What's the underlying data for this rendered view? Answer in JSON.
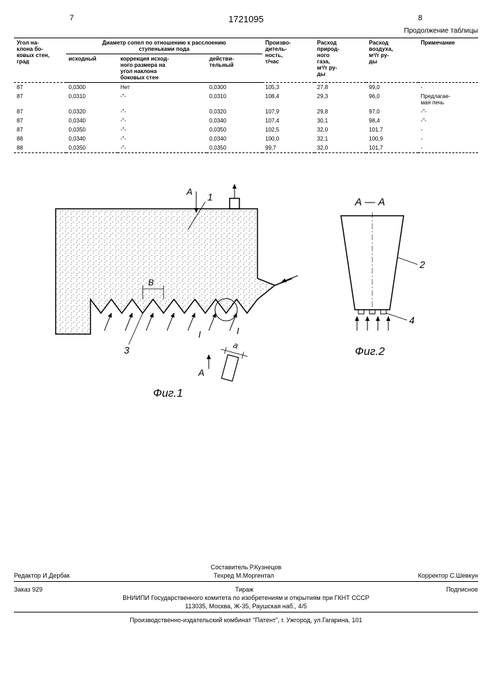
{
  "header": {
    "left_page": "7",
    "right_page": "8",
    "patent": "1721095",
    "continuation": "Продолжение таблицы"
  },
  "table": {
    "headers": {
      "col1": "Угол на-\nклона бо-\nковых стен,\nград",
      "col2_group": "Диаметр сопел по отношению к расслоению\nступеньками пода",
      "col2a": "исходный",
      "col2b": "коррекция исход-\nного размера на\nугол наклона\nбоковых стен",
      "col2c": "действи-\nтельный",
      "col3": "Произво-\nдитель-\nность,\nт/час",
      "col4": "Расход\nприрод-\nного\nгаза,\nм³/т ру-\nды",
      "col5": "Расход\nвоздуха,\nм³/т ру-\nды",
      "col6": "Примечание"
    },
    "rows": [
      {
        "c1": "87",
        "c2": "0,0300",
        "c3": "Нет",
        "c4": "0,0300",
        "c5": "105,3",
        "c6": "27,8",
        "c7": "99,0",
        "c8": "-"
      },
      {
        "c1": "87",
        "c2": "0,0310",
        "c3": "-\"-",
        "c4": "0,0310",
        "c5": "108,4",
        "c6": "29,3",
        "c7": "96,0",
        "c8": "Предлагае-\nмая печь"
      },
      {
        "c1": "87",
        "c2": "0,0320",
        "c3": "-\"-",
        "c4": "0,0320",
        "c5": "107,9",
        "c6": "29,8",
        "c7": "97,0",
        "c8": "-\"-"
      },
      {
        "c1": "87",
        "c2": "0,0340",
        "c3": "-\"-",
        "c4": "0,0340",
        "c5": "107,4",
        "c6": "30,1",
        "c7": "98,4",
        "c8": "-\"-"
      },
      {
        "c1": "87",
        "c2": "0,0350",
        "c3": "-\"-",
        "c4": "0,0350",
        "c5": "102,5",
        "c6": "32,0",
        "c7": "101,7",
        "c8": "-"
      },
      {
        "c1": "88",
        "c2": "0,0340",
        "c3": "-\"-",
        "c4": "0,0340",
        "c5": "100,0",
        "c6": "32,1",
        "c7": "100,9",
        "c8": "-"
      },
      {
        "c1": "88",
        "c2": "0,0350",
        "c3": "-\"-",
        "c4": "0,0350",
        "c5": "99,7",
        "c6": "32,0",
        "c7": "101,7",
        "c8": "-"
      }
    ]
  },
  "diagrams": {
    "fig1_label": "Фиг.1",
    "fig2_label": "Фиг.2",
    "section_label": "А — А",
    "ref_1": "1",
    "ref_2": "2",
    "ref_3": "3",
    "ref_4": "4",
    "ref_A": "А",
    "ref_B": "В",
    "ref_I": "I",
    "ref_a": "а"
  },
  "footer": {
    "compiler": "Составитель Р.Кузнецов",
    "editor": "Редактор И.Дербак",
    "techred": "Техред М.Моргентал",
    "corrector": "Корректор С.Шевкун",
    "order": "Заказ 929",
    "tirage": "Тираж",
    "subscription": "Подписное",
    "org1": "ВНИИПИ Государственного комитета по изобретениям и открытиям при ГКНТ СССР",
    "addr1": "113035, Москва, Ж-35, Раушская наб., 4/5",
    "org2": "Производственно-издательский комбинат \"Патент\", г. Ужгород, ул.Гагарина, 101"
  }
}
